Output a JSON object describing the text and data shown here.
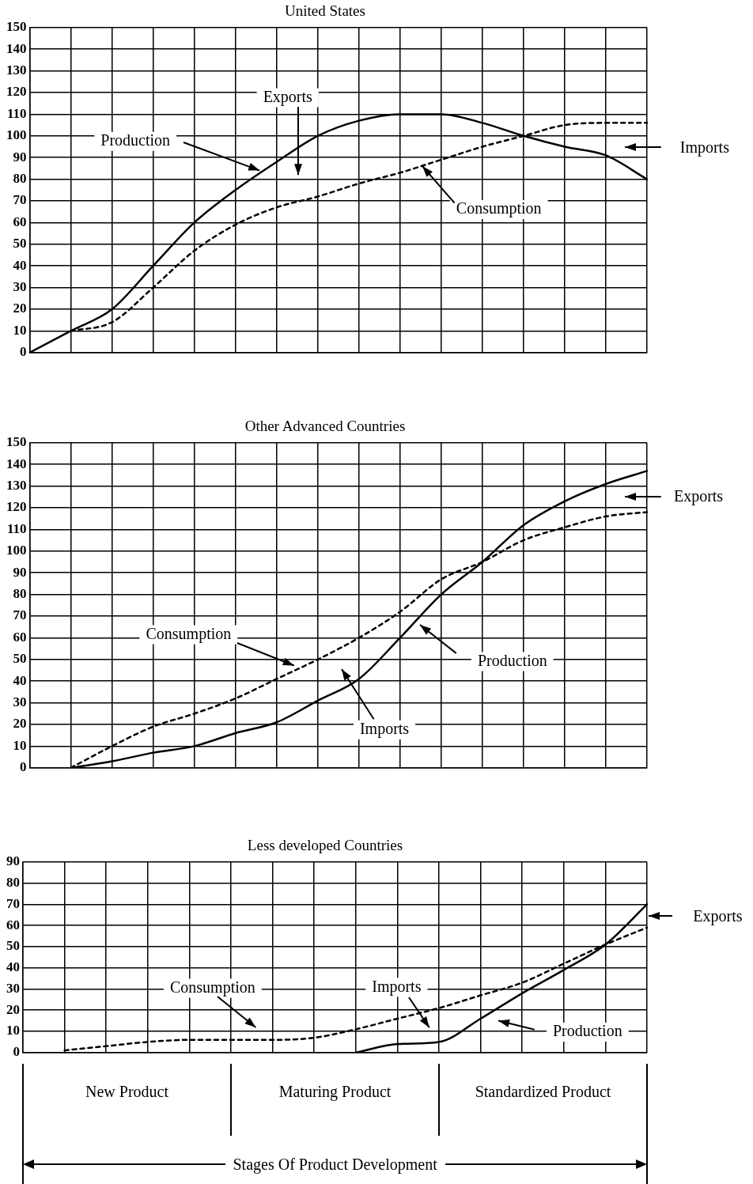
{
  "chart_data": [
    {
      "type": "line",
      "title": "United States",
      "categories": [
        null,
        null,
        null,
        null,
        null,
        null,
        null,
        null,
        null,
        null,
        null,
        null,
        null,
        null,
        null,
        null
      ],
      "series": [
        {
          "color": "#000000",
          "line_style": "solid",
          "values": [
            0,
            10,
            20,
            40,
            60,
            75,
            88,
            100,
            107,
            110,
            110,
            106,
            100,
            95,
            91,
            80
          ]
        },
        {
          "color": "#000000",
          "line_style": "dashed",
          "values": [
            null,
            10,
            14,
            30,
            47,
            59,
            67,
            72,
            78,
            83,
            89,
            95,
            100,
            105,
            106,
            106
          ]
        }
      ],
      "ylim": [
        0,
        150
      ],
      "yticks": [
        0,
        10,
        20,
        30,
        40,
        50,
        60,
        70,
        80,
        90,
        100,
        110,
        120,
        130,
        140,
        150
      ],
      "grid": true,
      "legend": false,
      "marker": "none",
      "tick_labels": "y",
      "annotations": [
        "Production",
        "Exports",
        "Imports",
        "Consumption"
      ]
    },
    {
      "type": "line",
      "title": "Other Advanced Countries",
      "categories": [
        null,
        null,
        null,
        null,
        null,
        null,
        null,
        null,
        null,
        null,
        null,
        null,
        null,
        null,
        null,
        null
      ],
      "series": [
        {
          "color": "#000000",
          "line_style": "solid",
          "values": [
            null,
            0,
            3,
            7,
            10,
            16,
            21,
            31,
            41,
            60,
            80,
            95,
            112,
            123,
            131,
            137
          ]
        },
        {
          "color": "#000000",
          "line_style": "dashed",
          "values": [
            null,
            0,
            10,
            19,
            25,
            32,
            41,
            50,
            60,
            72,
            87,
            95,
            105,
            111,
            116,
            118
          ]
        }
      ],
      "ylim": [
        0,
        150
      ],
      "yticks": [
        0,
        10,
        20,
        30,
        40,
        50,
        60,
        70,
        80,
        90,
        100,
        110,
        120,
        130,
        140,
        150
      ],
      "grid": true,
      "legend": false,
      "marker": "none",
      "tick_labels": "y",
      "annotations": [
        "Consumption",
        "Imports",
        "Production",
        "Exports"
      ]
    },
    {
      "type": "line",
      "title": "Less developed Countries",
      "categories": [
        null,
        null,
        null,
        null,
        null,
        null,
        null,
        null,
        null,
        null,
        null,
        null,
        null,
        null,
        null,
        null
      ],
      "series": [
        {
          "color": "#000000",
          "line_style": "solid",
          "values": [
            null,
            null,
            null,
            null,
            null,
            null,
            null,
            null,
            0,
            4,
            5,
            16,
            28,
            39,
            51,
            70
          ]
        },
        {
          "color": "#000000",
          "line_style": "dashed",
          "values": [
            null,
            1,
            3,
            5,
            6,
            6,
            6,
            7,
            11,
            16,
            21,
            27,
            33,
            42,
            51,
            59
          ]
        }
      ],
      "ylim": [
        0,
        90
      ],
      "yticks": [
        0,
        10,
        20,
        30,
        40,
        50,
        60,
        70,
        80,
        90
      ],
      "grid": true,
      "legend": false,
      "marker": "none",
      "tick_labels": "y",
      "annotations": [
        "Consumption",
        "Imports",
        "Production",
        "Exports",
        "New Product",
        "Maturing Product",
        "Standardized Product",
        "Stages Of Product Development"
      ]
    }
  ]
}
